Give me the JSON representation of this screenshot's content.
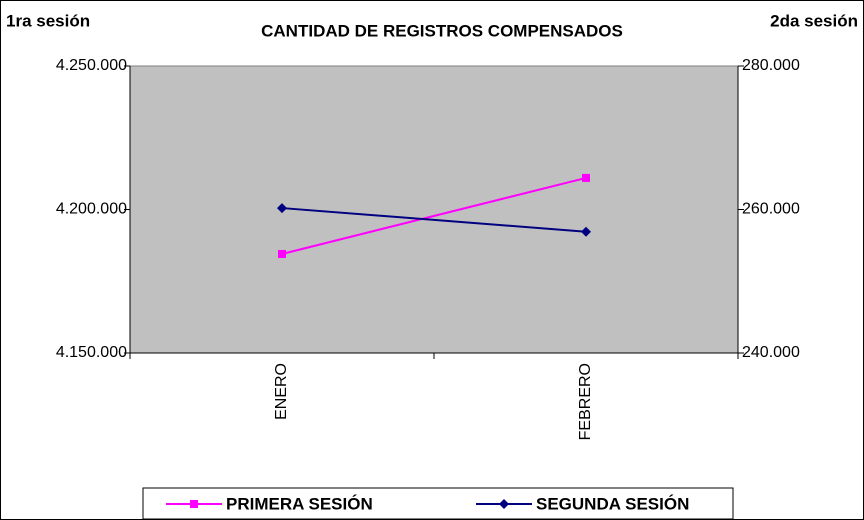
{
  "chart_data": {
    "type": "line",
    "title": "CANTIDAD DE REGISTROS COMPENSADOS",
    "y_label": "1ra sesión",
    "y2_label": "2da sesión",
    "categories": [
      "ENERO",
      "FEBRERO"
    ],
    "series": [
      {
        "name": "PRIMERA SESIÓN",
        "color": "#ff00ff",
        "marker": "square",
        "values": [
          4184500,
          4211000
        ]
      },
      {
        "name": "SEGUNDA SESIÓN",
        "color": "#000080",
        "marker": "diamond",
        "axis": "y2",
        "values": [
          260200,
          256900
        ]
      }
    ],
    "ylim": [
      4150000,
      4250000
    ],
    "yticks": [
      {
        "value": 4150000,
        "label": "4.150.000"
      },
      {
        "value": 4200000,
        "label": "4.200.000"
      },
      {
        "value": 4250000,
        "label": "4.250.000"
      }
    ],
    "y2lim": [
      240000,
      280000
    ],
    "y2ticks": [
      {
        "value": 240000,
        "label": "240.000"
      },
      {
        "value": 260000,
        "label": "260.000"
      },
      {
        "value": 280000,
        "label": "280.000"
      }
    ],
    "legend": "bottom"
  }
}
